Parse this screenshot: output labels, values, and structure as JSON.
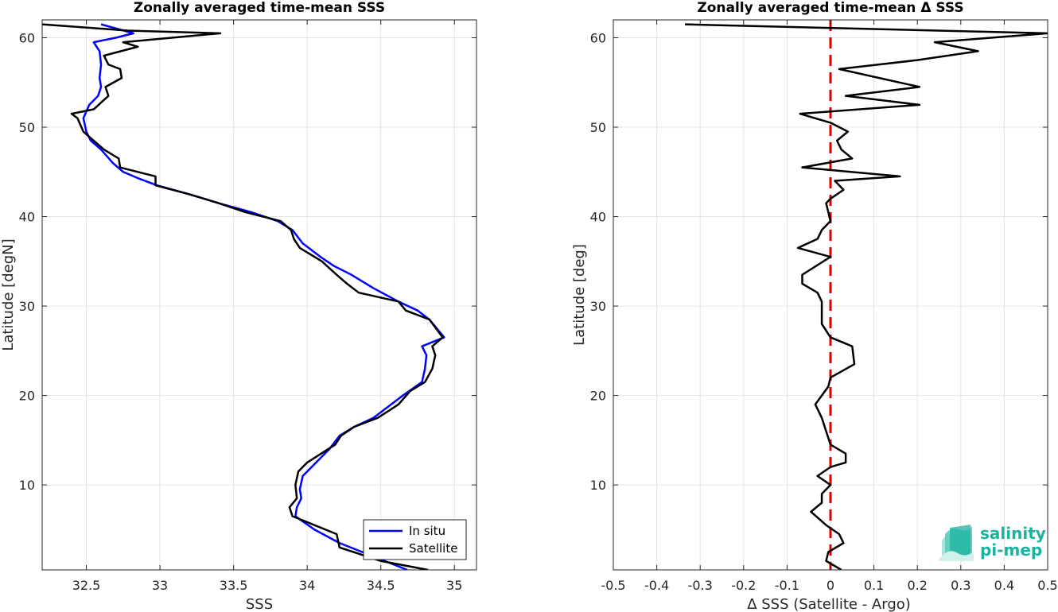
{
  "chart_data": [
    {
      "type": "line",
      "title": "Zonally averaged time-mean SSS",
      "xlabel": "SSS",
      "ylabel": "Latitude [degN]",
      "xlim": [
        32.2,
        35.15
      ],
      "ylim": [
        0.5,
        62
      ],
      "xticks": [
        32.5,
        33,
        33.5,
        34,
        34.5,
        35
      ],
      "xtick_labels": [
        "32.5",
        "33",
        "33.5",
        "34",
        "34.5",
        "35"
      ],
      "yticks": [
        10,
        20,
        30,
        40,
        50,
        60
      ],
      "ytick_labels": [
        "10",
        "20",
        "30",
        "40",
        "50",
        "60"
      ],
      "grid": true,
      "legend_location": "bottom-right",
      "series": [
        {
          "name": "In situ",
          "color": "#0000ff",
          "points": [
            [
              34.68,
              0.5
            ],
            [
              34.45,
              2.0
            ],
            [
              34.22,
              3.5
            ],
            [
              34.05,
              5.0
            ],
            [
              33.92,
              6.5
            ],
            [
              33.93,
              7.5
            ],
            [
              33.96,
              8.5
            ],
            [
              33.95,
              9.5
            ],
            [
              33.97,
              11.0
            ],
            [
              34.03,
              12.0
            ],
            [
              34.15,
              14.0
            ],
            [
              34.22,
              15.5
            ],
            [
              34.32,
              16.5
            ],
            [
              34.45,
              17.5
            ],
            [
              34.65,
              20.0
            ],
            [
              34.78,
              21.5
            ],
            [
              34.8,
              23.0
            ],
            [
              34.81,
              24.5
            ],
            [
              34.78,
              25.5
            ],
            [
              34.93,
              26.5
            ],
            [
              34.83,
              28.5
            ],
            [
              34.75,
              29.5
            ],
            [
              34.62,
              30.5
            ],
            [
              34.45,
              32.0
            ],
            [
              34.3,
              33.5
            ],
            [
              34.18,
              34.5
            ],
            [
              34.09,
              35.5
            ],
            [
              33.97,
              37.0
            ],
            [
              33.9,
              38.5
            ],
            [
              33.8,
              39.5
            ],
            [
              33.62,
              40.5
            ],
            [
              33.4,
              41.5
            ],
            [
              33.2,
              42.5
            ],
            [
              32.98,
              43.5
            ],
            [
              32.85,
              44.3
            ],
            [
              32.75,
              45.0
            ],
            [
              32.68,
              46.0
            ],
            [
              32.6,
              47.5
            ],
            [
              32.53,
              48.5
            ],
            [
              32.5,
              49.5
            ],
            [
              32.48,
              51.0
            ],
            [
              32.52,
              52.5
            ],
            [
              32.58,
              53.5
            ],
            [
              32.6,
              54.5
            ],
            [
              32.59,
              55.5
            ],
            [
              32.6,
              57.0
            ],
            [
              32.59,
              58.5
            ],
            [
              32.55,
              59.5
            ],
            [
              32.7,
              60.0
            ],
            [
              32.82,
              60.5
            ],
            [
              32.6,
              61.5
            ]
          ]
        },
        {
          "name": "Satellite",
          "color": "#000000",
          "points": [
            [
              34.82,
              0.5
            ],
            [
              34.5,
              1.5
            ],
            [
              34.22,
              3.0
            ],
            [
              34.2,
              4.5
            ],
            [
              33.9,
              6.5
            ],
            [
              33.88,
              7.5
            ],
            [
              33.93,
              8.5
            ],
            [
              33.92,
              10.0
            ],
            [
              33.94,
              11.5
            ],
            [
              34.0,
              12.5
            ],
            [
              34.19,
              14.5
            ],
            [
              34.23,
              15.5
            ],
            [
              34.32,
              16.5
            ],
            [
              34.48,
              17.5
            ],
            [
              34.62,
              19.0
            ],
            [
              34.7,
              20.5
            ],
            [
              34.8,
              21.5
            ],
            [
              34.85,
              23.0
            ],
            [
              34.87,
              24.5
            ],
            [
              34.85,
              25.5
            ],
            [
              34.92,
              26.5
            ],
            [
              34.83,
              28.5
            ],
            [
              34.67,
              29.5
            ],
            [
              34.62,
              30.5
            ],
            [
              34.35,
              31.5
            ],
            [
              34.27,
              32.5
            ],
            [
              34.2,
              33.5
            ],
            [
              34.1,
              35.0
            ],
            [
              33.95,
              36.5
            ],
            [
              33.91,
              37.5
            ],
            [
              33.89,
              38.5
            ],
            [
              33.82,
              39.5
            ],
            [
              33.58,
              40.5
            ],
            [
              33.4,
              41.5
            ],
            [
              33.2,
              42.5
            ],
            [
              32.97,
              43.5
            ],
            [
              32.97,
              44.5
            ],
            [
              32.73,
              45.5
            ],
            [
              32.72,
              46.5
            ],
            [
              32.62,
              47.5
            ],
            [
              32.55,
              48.5
            ],
            [
              32.48,
              49.5
            ],
            [
              32.44,
              51.0
            ],
            [
              32.4,
              51.5
            ],
            [
              32.55,
              52.0
            ],
            [
              32.65,
              53.5
            ],
            [
              32.63,
              54.5
            ],
            [
              32.74,
              55.5
            ],
            [
              32.73,
              56.5
            ],
            [
              32.65,
              57.0
            ],
            [
              32.62,
              58.0
            ],
            [
              32.85,
              59.0
            ],
            [
              32.75,
              59.5
            ],
            [
              33.41,
              60.5
            ],
            [
              32.78,
              60.8
            ],
            [
              32.2,
              61.5
            ]
          ]
        }
      ]
    },
    {
      "type": "line",
      "title": "Zonally averaged time-mean Δ SSS",
      "xlabel": "Δ SSS (Satellite - Argo)",
      "ylabel": "Latitude [deg]",
      "xlim": [
        -0.5,
        0.5
      ],
      "ylim": [
        0.5,
        62
      ],
      "xticks": [
        -0.5,
        -0.4,
        -0.3,
        -0.2,
        -0.1,
        0,
        0.1,
        0.2,
        0.3,
        0.4,
        0.5
      ],
      "xtick_labels": [
        "-0.5",
        "-0.4",
        "-0.3",
        "-0.2",
        "-0.1",
        "0",
        "0.1",
        "0.2",
        "0.3",
        "0.4",
        "0.5"
      ],
      "yticks": [
        10,
        20,
        30,
        40,
        50,
        60
      ],
      "ytick_labels": [
        "10",
        "20",
        "30",
        "40",
        "50",
        "60"
      ],
      "grid": true,
      "reference_line": {
        "x": 0,
        "color": "#e00000",
        "style": "dashed"
      },
      "series": [
        {
          "color": "#000000",
          "points": [
            [
              0.025,
              0.5
            ],
            [
              -0.01,
              1.5
            ],
            [
              -0.005,
              2.5
            ],
            [
              0.03,
              3.5
            ],
            [
              0.02,
              4.5
            ],
            [
              -0.01,
              5.5
            ],
            [
              -0.045,
              7.0
            ],
            [
              -0.02,
              8.0
            ],
            [
              -0.02,
              9.0
            ],
            [
              0.0,
              10.0
            ],
            [
              -0.03,
              11.0
            ],
            [
              0.0,
              12.0
            ],
            [
              0.035,
              12.5
            ],
            [
              0.035,
              13.5
            ],
            [
              0.0,
              14.5
            ],
            [
              -0.01,
              16.0
            ],
            [
              -0.02,
              17.5
            ],
            [
              -0.035,
              19.0
            ],
            [
              -0.02,
              20.0
            ],
            [
              -0.005,
              21.0
            ],
            [
              0.0,
              22.0
            ],
            [
              0.055,
              23.5
            ],
            [
              0.05,
              25.5
            ],
            [
              0.0,
              26.5
            ],
            [
              -0.02,
              28.0
            ],
            [
              -0.02,
              29.0
            ],
            [
              -0.02,
              30.5
            ],
            [
              -0.03,
              31.5
            ],
            [
              -0.065,
              32.5
            ],
            [
              -0.065,
              33.5
            ],
            [
              0.0,
              35.5
            ],
            [
              -0.075,
              36.5
            ],
            [
              -0.03,
              37.5
            ],
            [
              -0.02,
              38.5
            ],
            [
              0.0,
              39.5
            ],
            [
              -0.005,
              40.5
            ],
            [
              -0.01,
              41.5
            ],
            [
              0.0,
              42.0
            ],
            [
              0.03,
              43.0
            ],
            [
              0.01,
              44.0
            ],
            [
              0.16,
              44.5
            ],
            [
              -0.065,
              45.5
            ],
            [
              0.05,
              46.5
            ],
            [
              0.025,
              47.5
            ],
            [
              0.015,
              48.5
            ],
            [
              0.04,
              49.5
            ],
            [
              0.0,
              50.5
            ],
            [
              -0.07,
              51.5
            ],
            [
              0.205,
              52.5
            ],
            [
              0.035,
              53.5
            ],
            [
              0.205,
              54.5
            ],
            [
              0.02,
              56.5
            ],
            [
              0.2,
              57.5
            ],
            [
              0.34,
              58.5
            ],
            [
              0.24,
              59.5
            ],
            [
              0.5,
              60.5
            ],
            [
              -0.335,
              61.5
            ]
          ]
        }
      ]
    }
  ],
  "logo": {
    "line1": "salinity",
    "line2": "pi-mep"
  }
}
